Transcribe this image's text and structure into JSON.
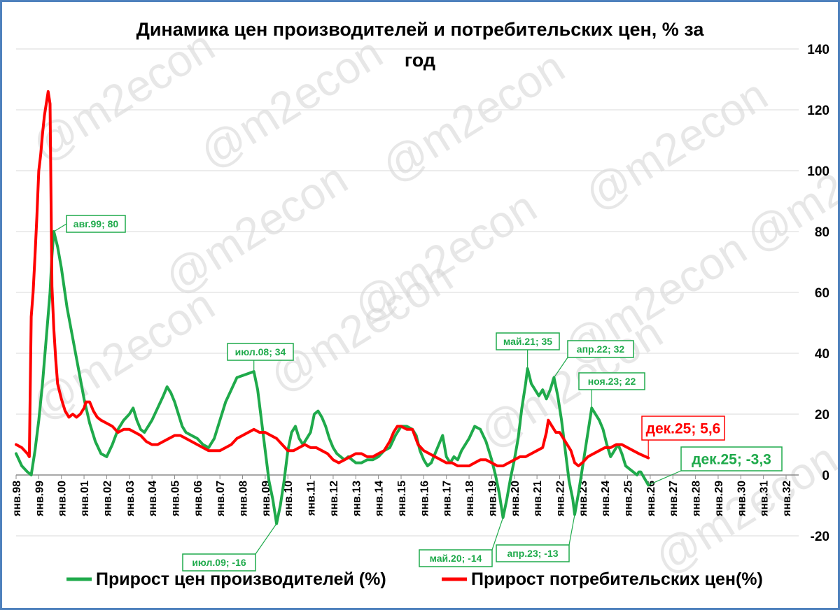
{
  "chart_data": {
    "type": "line",
    "title_lines": [
      "Динамика цен производителей и потребительских цен, % за",
      "год"
    ],
    "xlabel": "",
    "ylabel": "",
    "ylim": [
      -20,
      140
    ],
    "yticks": [
      -20,
      0,
      20,
      40,
      60,
      80,
      100,
      120,
      140
    ],
    "x_start_year": 1998,
    "x_categories": [
      "янв.98",
      "янв.99",
      "янв.00",
      "янв.01",
      "янв.02",
      "янв.03",
      "янв.04",
      "янв.05",
      "янв.06",
      "янв.07",
      "янв.08",
      "янв.09",
      "янв.10",
      "янв.11",
      "янв.12",
      "янв.13",
      "янв.14",
      "янв.15",
      "янв.16",
      "янв.17",
      "янв.18",
      "янв.19",
      "янв.20",
      "янв.21",
      "янв.22",
      "янв.23",
      "янв.24",
      "янв.25",
      "янв.26",
      "янв.27",
      "янв.28",
      "янв.29",
      "янв.30",
      "янв.31",
      "янв.32"
    ],
    "grid": true,
    "legend_position": "bottom",
    "watermark": "@m2econ",
    "series": [
      {
        "name": "Прирост цен производителей (%)",
        "color": "#1faa4b",
        "points": [
          [
            0,
            7
          ],
          [
            3,
            3
          ],
          [
            6,
            1
          ],
          [
            8,
            0
          ],
          [
            10,
            8
          ],
          [
            12,
            18
          ],
          [
            14,
            30
          ],
          [
            16,
            45
          ],
          [
            18,
            60
          ],
          [
            19,
            72
          ],
          [
            20,
            80
          ],
          [
            22,
            75
          ],
          [
            24,
            68
          ],
          [
            27,
            55
          ],
          [
            30,
            45
          ],
          [
            33,
            35
          ],
          [
            36,
            25
          ],
          [
            39,
            17
          ],
          [
            42,
            11
          ],
          [
            45,
            7
          ],
          [
            48,
            6
          ],
          [
            51,
            10
          ],
          [
            54,
            15
          ],
          [
            57,
            18
          ],
          [
            60,
            20
          ],
          [
            62,
            22
          ],
          [
            64,
            18
          ],
          [
            66,
            15
          ],
          [
            68,
            14
          ],
          [
            70,
            16
          ],
          [
            72,
            18
          ],
          [
            75,
            22
          ],
          [
            78,
            26
          ],
          [
            80,
            29
          ],
          [
            82,
            27
          ],
          [
            84,
            24
          ],
          [
            86,
            20
          ],
          [
            88,
            16
          ],
          [
            90,
            14
          ],
          [
            93,
            13
          ],
          [
            96,
            12
          ],
          [
            99,
            10
          ],
          [
            102,
            9
          ],
          [
            105,
            12
          ],
          [
            108,
            18
          ],
          [
            111,
            24
          ],
          [
            114,
            28
          ],
          [
            117,
            32
          ],
          [
            126,
            34
          ],
          [
            128,
            28
          ],
          [
            130,
            18
          ],
          [
            132,
            8
          ],
          [
            134,
            -2
          ],
          [
            136,
            -8
          ],
          [
            137,
            -12
          ],
          [
            138,
            -16
          ],
          [
            140,
            -10
          ],
          [
            142,
            -2
          ],
          [
            144,
            8
          ],
          [
            146,
            14
          ],
          [
            148,
            16
          ],
          [
            150,
            12
          ],
          [
            152,
            10
          ],
          [
            154,
            12
          ],
          [
            156,
            14
          ],
          [
            158,
            20
          ],
          [
            160,
            21
          ],
          [
            162,
            19
          ],
          [
            164,
            16
          ],
          [
            166,
            12
          ],
          [
            168,
            9
          ],
          [
            170,
            7
          ],
          [
            172,
            6
          ],
          [
            174,
            5
          ],
          [
            176,
            6
          ],
          [
            178,
            5
          ],
          [
            180,
            4
          ],
          [
            183,
            4
          ],
          [
            186,
            5
          ],
          [
            189,
            5
          ],
          [
            192,
            6
          ],
          [
            195,
            8
          ],
          [
            198,
            9
          ],
          [
            201,
            13
          ],
          [
            204,
            16
          ],
          [
            207,
            16
          ],
          [
            210,
            15
          ],
          [
            212,
            13
          ],
          [
            214,
            8
          ],
          [
            216,
            5
          ],
          [
            218,
            3
          ],
          [
            220,
            4
          ],
          [
            222,
            7
          ],
          [
            224,
            10
          ],
          [
            226,
            13
          ],
          [
            228,
            6
          ],
          [
            230,
            4
          ],
          [
            232,
            6
          ],
          [
            234,
            5
          ],
          [
            236,
            8
          ],
          [
            240,
            12
          ],
          [
            243,
            16
          ],
          [
            246,
            15
          ],
          [
            249,
            11
          ],
          [
            252,
            5
          ],
          [
            254,
            0
          ],
          [
            256,
            -6
          ],
          [
            257,
            -10
          ],
          [
            258,
            -14
          ],
          [
            260,
            -8
          ],
          [
            262,
            -1
          ],
          [
            264,
            5
          ],
          [
            266,
            12
          ],
          [
            268,
            22
          ],
          [
            270,
            30
          ],
          [
            271,
            35
          ],
          [
            273,
            30
          ],
          [
            275,
            28
          ],
          [
            277,
            26
          ],
          [
            279,
            28
          ],
          [
            281,
            25
          ],
          [
            283,
            28
          ],
          [
            285,
            32
          ],
          [
            287,
            26
          ],
          [
            289,
            18
          ],
          [
            291,
            8
          ],
          [
            293,
            -2
          ],
          [
            295,
            -8
          ],
          [
            296,
            -13
          ],
          [
            298,
            -6
          ],
          [
            300,
            2
          ],
          [
            302,
            10
          ],
          [
            304,
            18
          ],
          [
            305,
            22
          ],
          [
            307,
            20
          ],
          [
            309,
            18
          ],
          [
            311,
            15
          ],
          [
            313,
            10
          ],
          [
            315,
            6
          ],
          [
            317,
            8
          ],
          [
            319,
            10
          ],
          [
            321,
            7
          ],
          [
            323,
            3
          ],
          [
            325,
            2
          ],
          [
            327,
            1
          ],
          [
            329,
            0
          ],
          [
            330,
            1
          ],
          [
            331,
            1
          ],
          [
            335,
            -3.3
          ]
        ],
        "annotations": [
          {
            "label": "авг.99; 80",
            "i": 20,
            "y": 80
          },
          {
            "label": "июл.08; 34",
            "i": 126,
            "y": 34
          },
          {
            "label": "июл.09; -16",
            "i": 138,
            "y": -16
          },
          {
            "label": "май.20; -14",
            "i": 258,
            "y": -14
          },
          {
            "label": "май.21; 35",
            "i": 271,
            "y": 35
          },
          {
            "label": "апр.22; 32",
            "i": 285,
            "y": 32
          },
          {
            "label": "апр.23; -13",
            "i": 296,
            "y": -13
          },
          {
            "label": "ноя.23; 22",
            "i": 305,
            "y": 22
          },
          {
            "label": "дек.25; -3,3",
            "i": 335,
            "y": -3.3
          }
        ]
      },
      {
        "name": "Прирост потребительских цен(%)",
        "color": "#ff0000",
        "points": [
          [
            0,
            10
          ],
          [
            3,
            9
          ],
          [
            6,
            7
          ],
          [
            7,
            6
          ],
          [
            8,
            52
          ],
          [
            9,
            60
          ],
          [
            10,
            72
          ],
          [
            11,
            85
          ],
          [
            12,
            100
          ],
          [
            13,
            105
          ],
          [
            14,
            112
          ],
          [
            15,
            118
          ],
          [
            17,
            126
          ],
          [
            18,
            122
          ],
          [
            19,
            62
          ],
          [
            20,
            48
          ],
          [
            21,
            38
          ],
          [
            22,
            30
          ],
          [
            24,
            25
          ],
          [
            26,
            21
          ],
          [
            28,
            19
          ],
          [
            30,
            20
          ],
          [
            32,
            19
          ],
          [
            34,
            20
          ],
          [
            36,
            22
          ],
          [
            37,
            24
          ],
          [
            39,
            24
          ],
          [
            41,
            21
          ],
          [
            43,
            19
          ],
          [
            45,
            18
          ],
          [
            48,
            17
          ],
          [
            51,
            16
          ],
          [
            54,
            14
          ],
          [
            57,
            15
          ],
          [
            60,
            15
          ],
          [
            63,
            14
          ],
          [
            66,
            13
          ],
          [
            69,
            11
          ],
          [
            72,
            10
          ],
          [
            75,
            10
          ],
          [
            78,
            11
          ],
          [
            81,
            12
          ],
          [
            84,
            13
          ],
          [
            87,
            13
          ],
          [
            90,
            12
          ],
          [
            93,
            11
          ],
          [
            96,
            10
          ],
          [
            99,
            9
          ],
          [
            102,
            8
          ],
          [
            105,
            8
          ],
          [
            108,
            8
          ],
          [
            111,
            9
          ],
          [
            114,
            10
          ],
          [
            117,
            12
          ],
          [
            120,
            13
          ],
          [
            123,
            14
          ],
          [
            126,
            15
          ],
          [
            129,
            14
          ],
          [
            132,
            14
          ],
          [
            135,
            13
          ],
          [
            138,
            12
          ],
          [
            141,
            10
          ],
          [
            144,
            8
          ],
          [
            147,
            8
          ],
          [
            150,
            9
          ],
          [
            153,
            10
          ],
          [
            156,
            9
          ],
          [
            159,
            9
          ],
          [
            162,
            8
          ],
          [
            165,
            7
          ],
          [
            168,
            5
          ],
          [
            171,
            4
          ],
          [
            174,
            5
          ],
          [
            177,
            6
          ],
          [
            180,
            7
          ],
          [
            183,
            7
          ],
          [
            186,
            6
          ],
          [
            189,
            6
          ],
          [
            192,
            7
          ],
          [
            195,
            8
          ],
          [
            198,
            11
          ],
          [
            200,
            14
          ],
          [
            202,
            16
          ],
          [
            204,
            16
          ],
          [
            207,
            15
          ],
          [
            210,
            15
          ],
          [
            213,
            10
          ],
          [
            216,
            8
          ],
          [
            219,
            7
          ],
          [
            222,
            6
          ],
          [
            225,
            5
          ],
          [
            228,
            4
          ],
          [
            231,
            4
          ],
          [
            234,
            3
          ],
          [
            237,
            3
          ],
          [
            240,
            3
          ],
          [
            243,
            4
          ],
          [
            246,
            5
          ],
          [
            249,
            5
          ],
          [
            252,
            4
          ],
          [
            255,
            3
          ],
          [
            258,
            3
          ],
          [
            261,
            4
          ],
          [
            264,
            5
          ],
          [
            267,
            6
          ],
          [
            270,
            6
          ],
          [
            273,
            7
          ],
          [
            276,
            8
          ],
          [
            279,
            9
          ],
          [
            281,
            14
          ],
          [
            282,
            18
          ],
          [
            284,
            16
          ],
          [
            286,
            14
          ],
          [
            288,
            14
          ],
          [
            290,
            12
          ],
          [
            292,
            10
          ],
          [
            294,
            8
          ],
          [
            296,
            4
          ],
          [
            298,
            3
          ],
          [
            300,
            4
          ],
          [
            303,
            6
          ],
          [
            306,
            7
          ],
          [
            309,
            8
          ],
          [
            312,
            9
          ],
          [
            315,
            9
          ],
          [
            318,
            10
          ],
          [
            321,
            10
          ],
          [
            324,
            9
          ],
          [
            327,
            8
          ],
          [
            330,
            7
          ],
          [
            335,
            5.6
          ]
        ],
        "annotations": [
          {
            "label": "дек.25; 5,6",
            "i": 335,
            "y": 5.6
          }
        ]
      }
    ]
  }
}
